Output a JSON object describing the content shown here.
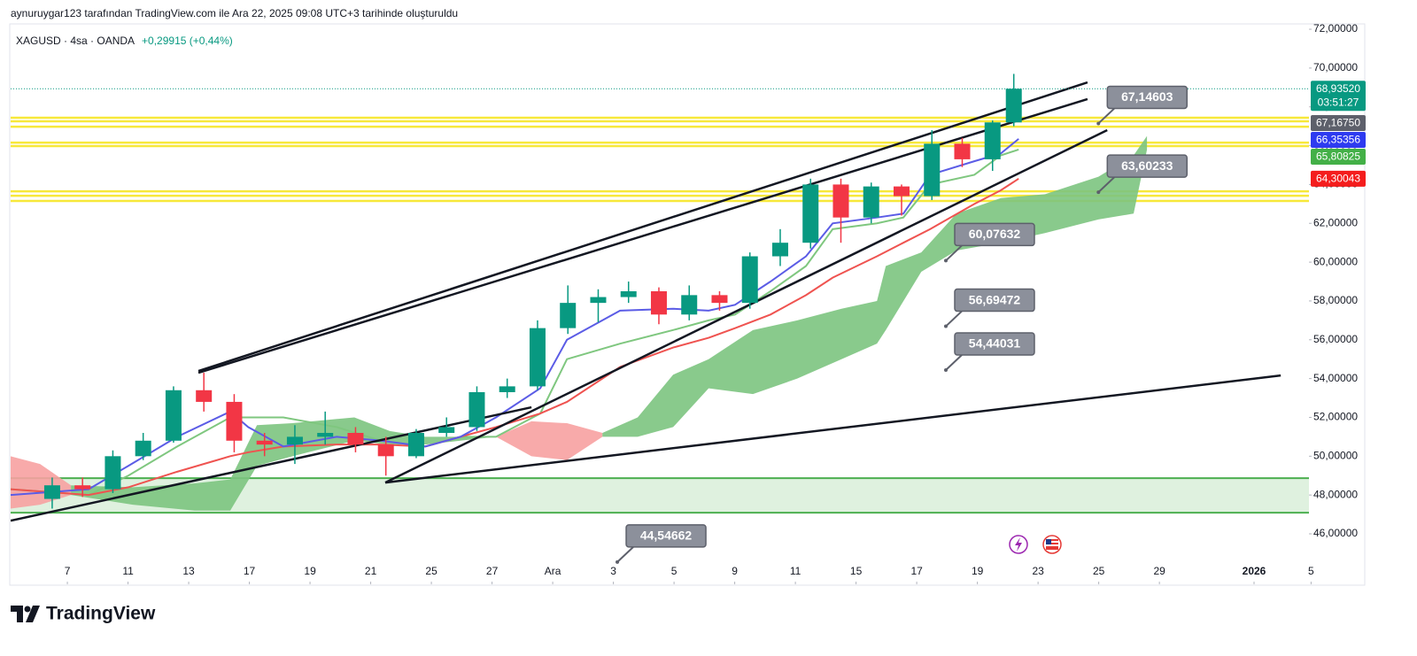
{
  "header": {
    "byline": "aynuruygar123 tarafından TradingView.com ile Ara 22, 2025 09:08 UTC+3 tarihinde oluşturuldu",
    "logo": "TradingView"
  },
  "chart_data": {
    "type": "candlestick",
    "symbol": "XAGUSD · 4sa · OANDA",
    "change": "+0,29915 (+0,44%)",
    "up_color": "#089981",
    "down_color": "#f23645",
    "xlim": [
      -1.87,
      40.93
    ],
    "ylim": [
      43.4,
      72.23
    ],
    "xticks": [
      {
        "value": 0,
        "label": "7"
      },
      {
        "value": 2,
        "label": "11"
      },
      {
        "value": 4,
        "label": "13"
      },
      {
        "value": 6,
        "label": "17"
      },
      {
        "value": 8,
        "label": "19"
      },
      {
        "value": 10,
        "label": "21"
      },
      {
        "value": 12,
        "label": "25"
      },
      {
        "value": 14,
        "label": "27"
      },
      {
        "value": 16,
        "label": "Ara"
      },
      {
        "value": 18,
        "label": "3"
      },
      {
        "value": 20,
        "label": "5"
      },
      {
        "value": 22,
        "label": "9"
      },
      {
        "value": 24,
        "label": "11"
      },
      {
        "value": 26,
        "label": "15"
      },
      {
        "value": 28,
        "label": "17"
      },
      {
        "value": 30,
        "label": "19"
      },
      {
        "value": 32,
        "label": "23"
      },
      {
        "value": 34,
        "label": "25"
      },
      {
        "value": 36,
        "label": "29"
      },
      {
        "value": 39.12,
        "label": "2026",
        "bold": true
      },
      {
        "value": 41,
        "label": "5"
      }
    ],
    "yticks": [
      {
        "value": 46,
        "label": "46,00000"
      },
      {
        "value": 48,
        "label": "48,00000"
      },
      {
        "value": 50,
        "label": "50,00000"
      },
      {
        "value": 52,
        "label": "52,00000"
      },
      {
        "value": 54,
        "label": "54,00000"
      },
      {
        "value": 56,
        "label": "56,00000"
      },
      {
        "value": 58,
        "label": "58,00000"
      },
      {
        "value": 60,
        "label": "60,00000"
      },
      {
        "value": 62,
        "label": "62,00000"
      },
      {
        "value": 64,
        "label": "64,00000"
      },
      {
        "value": 66,
        "label": "66,00000"
      },
      {
        "value": 68,
        "label": "68,00000"
      },
      {
        "value": 70,
        "label": "70,00000"
      },
      {
        "value": 72,
        "label": "72,00000"
      }
    ],
    "x": [
      -0.5,
      0.5,
      1.5,
      2.5,
      3.5,
      4.5,
      5.5,
      6.5,
      7.5,
      8.5,
      9.5,
      10.5,
      11.5,
      12.5,
      13.5,
      14.5,
      15.5,
      16.5,
      17.5,
      18.5,
      19.5,
      20.5,
      21.5,
      22.5,
      23.5,
      24.5,
      25.5,
      26.5,
      27.5,
      28.5,
      29.5,
      30.5,
      31.2
    ],
    "open": [
      47.8,
      48.5,
      48.3,
      50.0,
      50.8,
      53.4,
      52.8,
      50.8,
      50.6,
      51.0,
      51.2,
      50.6,
      50.0,
      51.2,
      51.5,
      53.3,
      53.6,
      56.6,
      57.9,
      58.2,
      58.5,
      57.3,
      58.3,
      57.9,
      60.3,
      61.0,
      64.0,
      62.3,
      63.9,
      63.4,
      66.1,
      65.3,
      67.2
    ],
    "high": [
      48.9,
      48.9,
      50.3,
      51.2,
      53.6,
      54.3,
      53.2,
      51.2,
      51.6,
      52.3,
      51.5,
      51.0,
      51.4,
      52.0,
      53.6,
      54.0,
      57.0,
      58.8,
      58.6,
      59.0,
      58.7,
      58.8,
      58.5,
      60.5,
      61.7,
      64.3,
      64.3,
      64.1,
      64.0,
      66.8,
      66.4,
      67.3,
      69.7
    ],
    "low": [
      47.3,
      47.9,
      48.1,
      49.8,
      50.7,
      52.3,
      50.2,
      50.0,
      49.6,
      50.6,
      50.2,
      49.0,
      49.9,
      51.0,
      51.3,
      53.0,
      53.4,
      56.3,
      56.9,
      57.9,
      56.8,
      57.0,
      57.5,
      57.6,
      59.8,
      60.7,
      61.0,
      62.0,
      62.4,
      63.2,
      64.9,
      64.7,
      67.0
    ],
    "close": [
      48.5,
      48.3,
      50.0,
      50.8,
      53.4,
      52.8,
      50.8,
      50.6,
      51.0,
      51.2,
      50.6,
      50.0,
      51.2,
      51.5,
      53.3,
      53.6,
      56.6,
      57.9,
      58.2,
      58.5,
      57.3,
      58.3,
      57.9,
      60.3,
      61.0,
      64.0,
      62.3,
      63.9,
      63.4,
      66.1,
      65.3,
      67.2,
      68.9352
    ],
    "zone": {
      "color": "#4caf50",
      "values": [
        47.09,
        48.87
      ]
    },
    "levels": {
      "color": "#f7e83a",
      "values": [
        67.44,
        67.26,
        66.98,
        66.16,
        65.98,
        63.65,
        63.42,
        63.15
      ]
    },
    "cloud": [
      {
        "color": "#f7a1a1",
        "x": [
          -1.87,
          -0.9,
          0.12
        ],
        "upper": [
          50.0,
          49.6,
          48.5
        ],
        "lower": [
          47.3,
          47.5,
          48.0
        ]
      },
      {
        "color": "#7cc47f",
        "x": [
          0.12,
          2.16,
          4.2,
          5.37,
          6.25,
          7.42,
          9.46,
          10.63,
          11.8,
          12.96,
          14.13
        ],
        "upper": [
          48.5,
          48.4,
          48.6,
          48.8,
          51.6,
          51.7,
          52.0,
          51.3,
          51.0,
          51.0,
          51.0
        ],
        "lower": [
          48.0,
          47.5,
          47.2,
          47.2,
          49.5,
          50.0,
          50.8,
          50.6,
          50.6,
          50.8,
          51.0
        ]
      },
      {
        "color": "#f7a1a1",
        "x": [
          14.13,
          15.3,
          16.47,
          17.64
        ],
        "upper": [
          51.0,
          51.8,
          51.7,
          51.2
        ],
        "lower": [
          51.0,
          50.0,
          49.8,
          51.0
        ]
      },
      {
        "color": "#7cc47f",
        "x": [
          17.64,
          18.8,
          19.97,
          21.14,
          22.6,
          24.06,
          25.52,
          26.69,
          26.98,
          28.15,
          29.31,
          30.77,
          32.23,
          33.99,
          35.15,
          35.59
        ],
        "upper": [
          51.2,
          52.0,
          54.2,
          55.0,
          56.5,
          57.0,
          57.6,
          58.0,
          59.8,
          60.5,
          62.5,
          63.3,
          63.5,
          64.4,
          65.5,
          66.5
        ],
        "lower": [
          51.0,
          51.0,
          51.5,
          53.5,
          53.2,
          54.0,
          55.0,
          55.8,
          56.5,
          59.5,
          60.6,
          61.0,
          61.5,
          62.2,
          62.5,
          65.8
        ]
      }
    ],
    "lines": [
      {
        "color": "#7fc77f",
        "x": [
          -1.87,
          0.7,
          2.01,
          3.62,
          5.37,
          5.96,
          7.12,
          8.88,
          10.34,
          11.8,
          12.96,
          14.13,
          15.59,
          16.47,
          18.22,
          19.97,
          21.14,
          22.01,
          23.18,
          24.35,
          25.23,
          26.69,
          27.56,
          28.44,
          29.9,
          30.77,
          31.36
        ],
        "values": [
          48.3,
          48.0,
          49.0,
          50.5,
          52.0,
          52.0,
          52.0,
          51.5,
          50.8,
          50.5,
          51.0,
          51.0,
          52.2,
          55.0,
          55.8,
          56.5,
          57.0,
          57.3,
          58.5,
          59.8,
          61.7,
          62.0,
          62.3,
          64.0,
          64.5,
          65.5,
          65.8
        ]
      },
      {
        "color": "#ef5350",
        "x": [
          -1.87,
          0.7,
          2.01,
          3.62,
          5.37,
          5.96,
          7.12,
          8.88,
          10.34,
          11.8,
          12.96,
          14.13,
          15.59,
          16.47,
          18.22,
          19.97,
          21.14,
          22.01,
          23.18,
          24.35,
          25.23,
          26.69,
          27.56,
          28.44,
          29.9,
          30.77,
          31.36
        ],
        "values": [
          48.3,
          48.0,
          48.4,
          49.2,
          50.0,
          50.2,
          50.5,
          50.6,
          50.6,
          50.5,
          51.0,
          51.5,
          52.2,
          52.8,
          54.6,
          55.6,
          56.1,
          56.6,
          57.3,
          58.3,
          59.2,
          60.3,
          61.0,
          61.7,
          63.0,
          63.7,
          64.3
        ]
      },
      {
        "color": "#5b5ce6",
        "x": [
          -1.87,
          0.7,
          2.01,
          3.62,
          5.37,
          5.96,
          7.12,
          8.88,
          10.34,
          11.8,
          12.96,
          14.13,
          15.59,
          16.47,
          18.22,
          19.97,
          21.14,
          22.01,
          23.18,
          24.35,
          25.23,
          26.69,
          27.56,
          28.44,
          29.9,
          30.77,
          31.36
        ],
        "values": [
          48.0,
          48.3,
          49.5,
          51.0,
          52.3,
          51.5,
          50.5,
          51.0,
          50.8,
          50.5,
          51.0,
          52.0,
          53.5,
          56.0,
          57.5,
          57.6,
          57.5,
          57.8,
          59.0,
          60.3,
          62.0,
          62.3,
          62.5,
          64.5,
          65.2,
          65.6,
          66.35
        ]
      }
    ],
    "trendlines": [
      {
        "x": [
          4.32,
          33.63
        ],
        "values": [
          54.39,
          69.26
        ]
      },
      {
        "x": [
          4.32,
          33.63
        ],
        "values": [
          54.3,
          68.4
        ]
      },
      {
        "x": [
          10.48,
          34.28
        ],
        "values": [
          48.64,
          66.8
        ]
      },
      {
        "x": [
          -1.87,
          15.3
        ],
        "values": [
          46.68,
          52.52
        ]
      },
      {
        "x": [
          10.48,
          40.0
        ],
        "values": [
          48.64,
          54.16
        ]
      }
    ],
    "annotations": [
      {
        "x": 33.99,
        "value": 67.14603,
        "label": "67,14603"
      },
      {
        "x": 33.99,
        "value": 63.60233,
        "label": "63,60233"
      },
      {
        "x": 28.96,
        "value": 60.07632,
        "label": "60,07632"
      },
      {
        "x": 28.96,
        "value": 56.69472,
        "label": "56,69472"
      },
      {
        "x": 28.96,
        "value": 54.44031,
        "label": "54,44031"
      },
      {
        "x": 18.13,
        "value": 44.54662,
        "label": "44,54662"
      }
    ],
    "price_badges": [
      {
        "value": 68.9352,
        "label": "68,93520",
        "timer": "03:51:27",
        "color": "#089981"
      },
      {
        "value": 67.1675,
        "label": "67,16750",
        "color": "#5d606b"
      },
      {
        "value": 66.35356,
        "label": "66,35356",
        "color": "#2e3bf0"
      },
      {
        "value": 65.80825,
        "label": "65,80825",
        "color": "#43b047"
      },
      {
        "value": 64.30043,
        "label": "64,30043",
        "color": "#f41d1d"
      }
    ]
  }
}
